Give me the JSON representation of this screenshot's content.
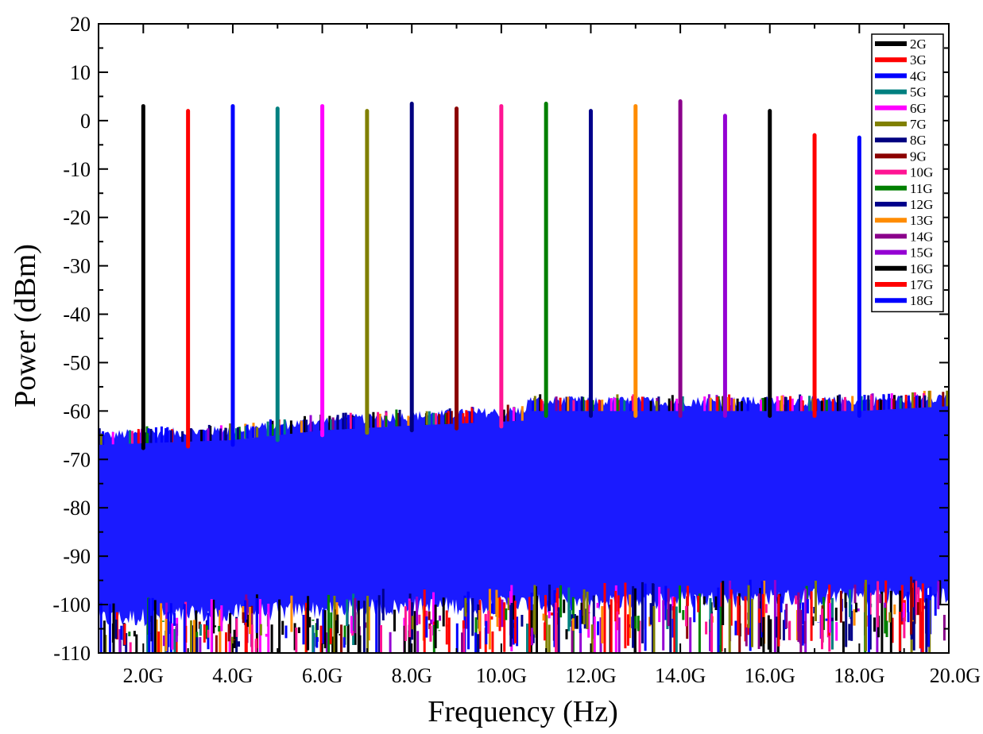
{
  "chart_data": {
    "type": "line",
    "title": "",
    "xlabel": "Frequency (Hz)",
    "ylabel": "Power (dBm)",
    "xlim": [
      1.0,
      20.0
    ],
    "ylim": [
      -110,
      20
    ],
    "x_ticks": [
      {
        "value": 2,
        "label": "2.0G"
      },
      {
        "value": 4,
        "label": "4.0G"
      },
      {
        "value": 6,
        "label": "6.0G"
      },
      {
        "value": 8,
        "label": "8.0G"
      },
      {
        "value": 10,
        "label": "10.0G"
      },
      {
        "value": 12,
        "label": "12.0G"
      },
      {
        "value": 14,
        "label": "14.0G"
      },
      {
        "value": 16,
        "label": "16.0G"
      },
      {
        "value": 18,
        "label": "18.0G"
      },
      {
        "value": 20,
        "label": "20.0G"
      }
    ],
    "y_ticks": [
      20,
      10,
      0,
      -10,
      -20,
      -30,
      -40,
      -50,
      -60,
      -70,
      -80,
      -90,
      -100,
      -110
    ],
    "grid": false,
    "legend_position": "top-right",
    "noise_floor": {
      "color": "#1a1aff",
      "upper_envelope": [
        [
          1.0,
          -65
        ],
        [
          4.0,
          -64
        ],
        [
          6.0,
          -62
        ],
        [
          8.0,
          -61
        ],
        [
          10.5,
          -60
        ],
        [
          10.6,
          -58
        ],
        [
          14.0,
          -58
        ],
        [
          18.0,
          -58
        ],
        [
          20.0,
          -57
        ]
      ],
      "lower_envelope": [
        [
          1.0,
          -103
        ],
        [
          6.0,
          -101
        ],
        [
          10.0,
          -100
        ],
        [
          14.0,
          -99
        ],
        [
          20.0,
          -98
        ]
      ]
    },
    "series": [
      {
        "name": "2G",
        "color": "#000000",
        "x": [
          2.0
        ],
        "y": [
          3.0
        ]
      },
      {
        "name": "3G",
        "color": "#ff0000",
        "x": [
          3.0
        ],
        "y": [
          2.0
        ]
      },
      {
        "name": "4G",
        "color": "#0000ff",
        "x": [
          4.0
        ],
        "y": [
          3.0
        ]
      },
      {
        "name": "5G",
        "color": "#008080",
        "x": [
          5.0
        ],
        "y": [
          2.5
        ]
      },
      {
        "name": "6G",
        "color": "#ff00ff",
        "x": [
          6.0
        ],
        "y": [
          3.0
        ]
      },
      {
        "name": "7G",
        "color": "#808000",
        "x": [
          7.0
        ],
        "y": [
          2.0
        ]
      },
      {
        "name": "8G",
        "color": "#000080",
        "x": [
          8.0
        ],
        "y": [
          3.5
        ]
      },
      {
        "name": "9G",
        "color": "#8b0000",
        "x": [
          9.0
        ],
        "y": [
          2.5
        ]
      },
      {
        "name": "10G",
        "color": "#ff1493",
        "x": [
          10.0
        ],
        "y": [
          3.0
        ]
      },
      {
        "name": "11G",
        "color": "#008000",
        "x": [
          11.0
        ],
        "y": [
          3.5
        ]
      },
      {
        "name": "12G",
        "color": "#00008b",
        "x": [
          12.0
        ],
        "y": [
          2.0
        ]
      },
      {
        "name": "13G",
        "color": "#ff8c00",
        "x": [
          13.0
        ],
        "y": [
          3.0
        ]
      },
      {
        "name": "14G",
        "color": "#8b008b",
        "x": [
          14.0
        ],
        "y": [
          4.0
        ]
      },
      {
        "name": "15G",
        "color": "#9400d3",
        "x": [
          15.0
        ],
        "y": [
          1.0
        ]
      },
      {
        "name": "16G",
        "color": "#000000",
        "x": [
          16.0
        ],
        "y": [
          2.0
        ]
      },
      {
        "name": "17G",
        "color": "#ff0000",
        "x": [
          17.0
        ],
        "y": [
          -3.0
        ]
      },
      {
        "name": "18G",
        "color": "#0000ff",
        "x": [
          18.0
        ],
        "y": [
          -3.5
        ]
      }
    ]
  }
}
